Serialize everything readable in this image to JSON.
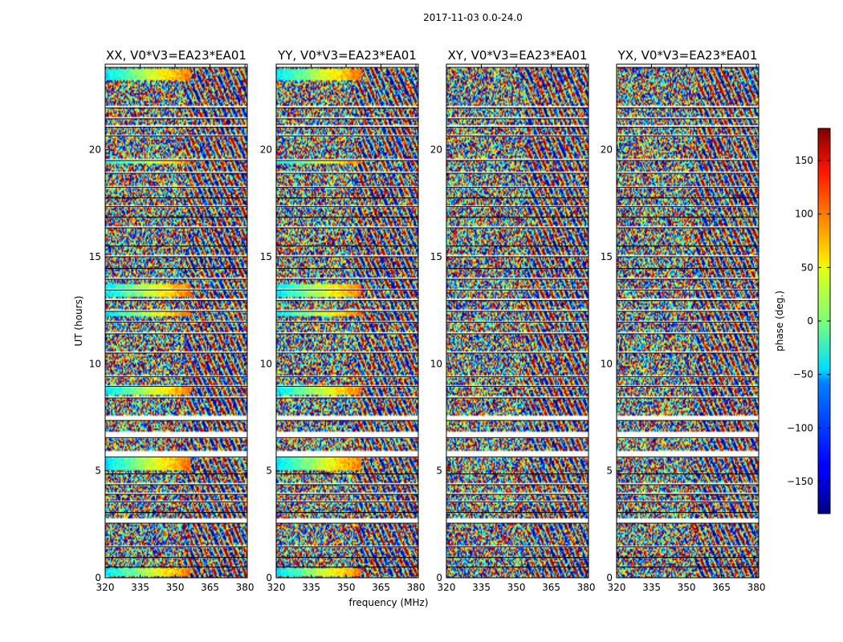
{
  "figure": {
    "suptitle": "2017-11-03 0.0-24.0"
  },
  "chart_data": [
    {
      "type": "heatmap",
      "title": "XX, V0*V3=EA23*EA01",
      "xlabel": "",
      "ylabel": "UT (hours)",
      "xlim": [
        320,
        381
      ],
      "ylim": [
        0,
        24
      ],
      "xticks": [
        320,
        335,
        350,
        365,
        380
      ],
      "yticks": [
        0,
        5,
        10,
        15,
        20
      ]
    },
    {
      "type": "heatmap",
      "title": "YY, V0*V3=EA23*EA01",
      "xlabel": "frequency (MHz)",
      "ylabel": "",
      "xlim": [
        320,
        381
      ],
      "ylim": [
        0,
        24
      ],
      "xticks": [
        320,
        335,
        350,
        365,
        380
      ],
      "yticks": [
        0,
        5,
        10,
        15,
        20
      ]
    },
    {
      "type": "heatmap",
      "title": "XY, V0*V3=EA23*EA01",
      "xlabel": "",
      "ylabel": "",
      "xlim": [
        320,
        381
      ],
      "ylim": [
        0,
        24
      ],
      "xticks": [
        320,
        335,
        350,
        365,
        380
      ],
      "yticks": [
        0,
        5,
        10,
        15,
        20
      ]
    },
    {
      "type": "heatmap",
      "title": "YX, V0*V3=EA23*EA01",
      "xlabel": "",
      "ylabel": "",
      "xlim": [
        320,
        381
      ],
      "ylim": [
        0,
        24
      ],
      "xticks": [
        320,
        335,
        350,
        365,
        380
      ],
      "yticks": [
        0,
        5,
        10,
        15,
        20
      ]
    }
  ],
  "colorbar": {
    "label": "phase (deg.)",
    "range": [
      -180,
      180
    ],
    "ticks": [
      150,
      100,
      50,
      0,
      -50,
      -100,
      -150
    ],
    "tick_labels": [
      "150",
      "100",
      "50",
      "0",
      "−50",
      "−100",
      "−150"
    ],
    "colormap": "jet"
  },
  "observation": {
    "blank_ut_bands": [
      [
        0.5,
        0.55
      ],
      [
        0.95,
        1.0
      ],
      [
        1.45,
        1.5
      ],
      [
        2.55,
        2.8
      ],
      [
        3.05,
        3.1
      ],
      [
        3.55,
        3.6
      ],
      [
        3.9,
        3.95
      ],
      [
        4.35,
        4.4
      ],
      [
        4.85,
        4.9
      ],
      [
        5.65,
        5.9
      ],
      [
        6.55,
        6.8
      ],
      [
        7.35,
        7.6
      ],
      [
        8.4,
        8.5
      ],
      [
        8.95,
        9.0
      ],
      [
        9.4,
        9.45
      ],
      [
        10.5,
        10.55
      ],
      [
        11.4,
        11.45
      ],
      [
        11.95,
        12.0
      ],
      [
        12.45,
        12.5
      ],
      [
        12.95,
        13.05
      ],
      [
        13.45,
        13.5
      ],
      [
        13.95,
        14.0
      ],
      [
        14.45,
        14.5
      ],
      [
        15.0,
        15.05
      ],
      [
        15.5,
        15.55
      ],
      [
        16.35,
        16.4
      ],
      [
        16.85,
        16.9
      ],
      [
        17.35,
        17.4
      ],
      [
        17.75,
        17.8
      ],
      [
        18.25,
        18.3
      ],
      [
        18.9,
        18.95
      ],
      [
        19.5,
        19.55
      ],
      [
        20.65,
        20.7
      ],
      [
        21.05,
        21.15
      ],
      [
        21.45,
        21.5
      ],
      [
        21.95,
        22.05
      ],
      [
        23.85,
        24.0
      ]
    ],
    "coherent_ut_bands": [
      [
        0.05,
        0.45
      ],
      [
        5.0,
        5.6
      ],
      [
        8.55,
        9.0
      ],
      [
        12.2,
        12.5
      ],
      [
        13.1,
        13.7
      ],
      [
        19.35,
        19.55
      ],
      [
        23.25,
        23.75
      ]
    ]
  }
}
